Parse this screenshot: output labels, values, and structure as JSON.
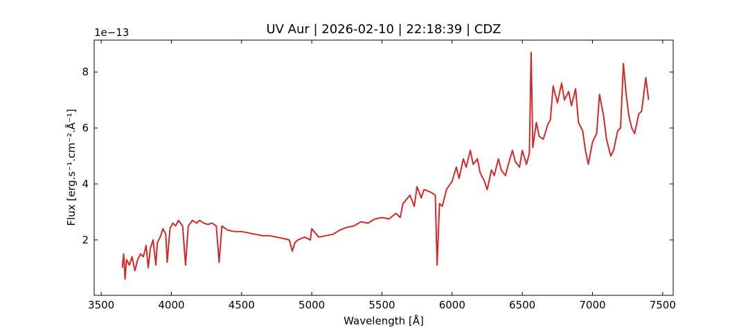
{
  "chart_data": {
    "type": "line",
    "title": "UV Aur | 2026-02-10 | 22:18:39 | CDZ",
    "x_label": "Wavelength [Å]",
    "y_label": "Flux [erg.s⁻¹.cm⁻².Å⁻¹]",
    "y_offset_label": "1e−13",
    "xlim": [
      3450,
      7575
    ],
    "ylim": [
      0.02,
      9.14
    ],
    "xticks": [
      3500,
      4000,
      4500,
      5000,
      5500,
      6000,
      6500,
      7000,
      7500
    ],
    "yticks": [
      2,
      4,
      6,
      8
    ],
    "series": [
      {
        "name": "UV Aur",
        "color": "#d62728",
        "x": [
          3650,
          3660,
          3670,
          3680,
          3700,
          3720,
          3740,
          3760,
          3780,
          3800,
          3820,
          3835,
          3850,
          3870,
          3889,
          3900,
          3920,
          3940,
          3960,
          3970,
          3990,
          4010,
          4030,
          4050,
          4080,
          4101,
          4120,
          4150,
          4180,
          4200,
          4230,
          4260,
          4290,
          4320,
          4340,
          4360,
          4400,
          4450,
          4500,
          4550,
          4600,
          4650,
          4700,
          4750,
          4800,
          4840,
          4861,
          4880,
          4900,
          4950,
          4990,
          5000,
          5050,
          5100,
          5150,
          5200,
          5250,
          5300,
          5350,
          5400,
          5450,
          5500,
          5550,
          5600,
          5630,
          5650,
          5700,
          5730,
          5750,
          5780,
          5800,
          5850,
          5880,
          5893,
          5910,
          5930,
          5960,
          6000,
          6030,
          6050,
          6080,
          6100,
          6130,
          6150,
          6180,
          6200,
          6230,
          6250,
          6280,
          6300,
          6330,
          6350,
          6380,
          6400,
          6430,
          6450,
          6480,
          6500,
          6530,
          6550,
          6563,
          6575,
          6600,
          6620,
          6650,
          6680,
          6700,
          6720,
          6750,
          6780,
          6800,
          6830,
          6850,
          6880,
          6900,
          6930,
          6950,
          6970,
          7000,
          7030,
          7050,
          7080,
          7100,
          7130,
          7150,
          7180,
          7200,
          7220,
          7240,
          7260,
          7280,
          7300,
          7330,
          7350,
          7380,
          7400
        ],
        "values": [
          1.0,
          1.5,
          0.6,
          1.3,
          1.1,
          1.4,
          0.9,
          1.3,
          1.5,
          1.4,
          1.8,
          1.0,
          1.7,
          2.0,
          1.1,
          1.9,
          2.1,
          2.4,
          2.2,
          1.2,
          2.4,
          2.6,
          2.5,
          2.7,
          2.5,
          1.1,
          2.5,
          2.7,
          2.6,
          2.7,
          2.6,
          2.55,
          2.6,
          2.5,
          1.2,
          2.5,
          2.35,
          2.3,
          2.3,
          2.25,
          2.2,
          2.15,
          2.15,
          2.1,
          2.05,
          2.0,
          1.6,
          1.9,
          2.0,
          2.1,
          2.0,
          2.4,
          2.1,
          2.15,
          2.2,
          2.35,
          2.45,
          2.5,
          2.65,
          2.6,
          2.75,
          2.8,
          2.75,
          2.95,
          2.8,
          3.3,
          3.6,
          3.2,
          3.9,
          3.5,
          3.8,
          3.7,
          3.6,
          1.1,
          3.3,
          3.2,
          3.8,
          4.1,
          4.6,
          4.2,
          4.9,
          4.6,
          5.2,
          4.7,
          4.9,
          4.4,
          4.1,
          3.8,
          4.5,
          4.3,
          4.9,
          4.5,
          4.3,
          4.7,
          5.2,
          4.8,
          4.6,
          5.2,
          4.7,
          5.1,
          8.7,
          5.3,
          6.2,
          5.7,
          5.6,
          6.1,
          6.3,
          7.5,
          6.9,
          7.6,
          7.0,
          7.3,
          6.8,
          7.4,
          6.2,
          5.9,
          5.2,
          4.7,
          5.5,
          5.8,
          7.2,
          6.4,
          5.6,
          5.0,
          5.2,
          5.9,
          6.0,
          8.3,
          7.2,
          6.4,
          6.0,
          5.8,
          6.5,
          6.6,
          7.8,
          7.0
        ]
      }
    ]
  }
}
